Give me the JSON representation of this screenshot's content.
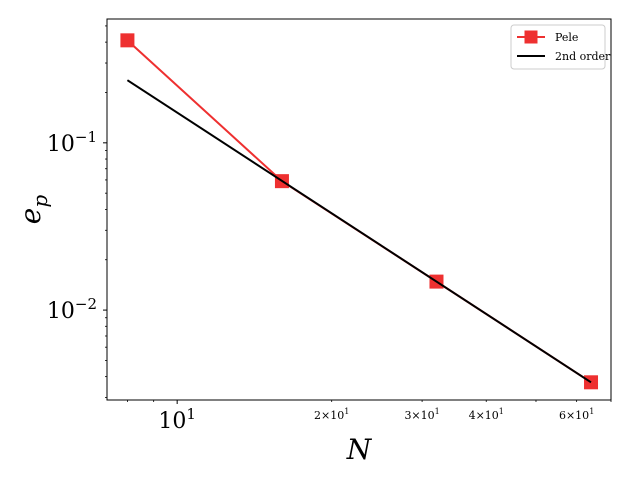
{
  "chart_data": {
    "type": "line",
    "xscale": "log",
    "yscale": "log",
    "xlim": [
      7.3,
      70
    ],
    "ylim": [
      0.0029,
      0.55
    ],
    "xlabel": "N",
    "ylabel": "e_p",
    "legend_position": "top-right",
    "grid": false,
    "x_ticks_major": [
      {
        "value": 10,
        "base": "10",
        "exp": "1"
      }
    ],
    "x_ticks_minor_labeled": [
      {
        "value": 20,
        "mant": "2",
        "base": "10",
        "exp": "1"
      },
      {
        "value": 30,
        "mant": "3",
        "base": "10",
        "exp": "1"
      },
      {
        "value": 40,
        "mant": "4",
        "base": "10",
        "exp": "1"
      },
      {
        "value": 60,
        "mant": "6",
        "base": "10",
        "exp": "1"
      }
    ],
    "y_ticks_major": [
      {
        "value": 0.1,
        "base": "10",
        "exp": "−1"
      },
      {
        "value": 0.01,
        "base": "10",
        "exp": "−2"
      }
    ],
    "series": [
      {
        "name": "Pele",
        "color": "#ee3030",
        "marker": "square",
        "x": [
          8,
          16,
          32,
          64
        ],
        "y": [
          0.41,
          0.059,
          0.0148,
          0.0037
        ]
      },
      {
        "name": "2nd order",
        "color": "#000000",
        "marker": "none",
        "x": [
          8,
          64
        ],
        "y": [
          0.237,
          0.0037
        ]
      }
    ]
  }
}
